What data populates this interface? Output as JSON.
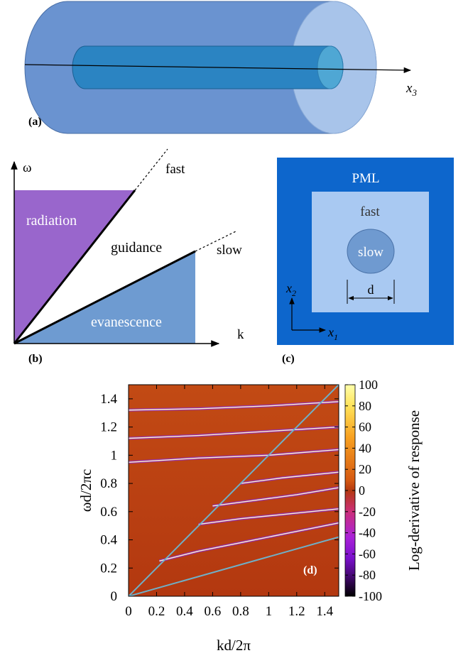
{
  "panel_a": {
    "label": "(a)",
    "axis_label_base": "x",
    "axis_label_sub": "3",
    "colors": {
      "outer": "#6a93d0",
      "outer_cap": "#a8c4ea",
      "inner": "#2b84c2",
      "inner_cap": "#4fa7d4"
    }
  },
  "panel_b": {
    "label": "(b)",
    "y_axis": "ω",
    "x_axis": "k",
    "regions": {
      "radiation": "radiation",
      "guidance": "guidance",
      "evanescence": "evanescence"
    },
    "lines": {
      "fast": "fast",
      "slow": "slow"
    },
    "colors": {
      "radiation": "#9966cc",
      "evanescence": "#6e9bd1"
    }
  },
  "panel_c": {
    "label": "(c)",
    "pml": "PML",
    "fast": "fast",
    "slow": "slow",
    "d": "d",
    "axis1_base": "x",
    "axis1_sub": "1",
    "axis2_base": "x",
    "axis2_sub": "2",
    "colors": {
      "pml": "#0d66cc",
      "fast": "#a9c9f2",
      "slow": "#6f9ad0"
    }
  },
  "chart_data": {
    "type": "heatmap",
    "panel_label": "(d)",
    "xlabel": "kd/2π",
    "ylabel": "ωd/2πc",
    "colorbar_label": "Log-derivative of response",
    "xlim": [
      0,
      1.5
    ],
    "ylim": [
      0,
      1.5
    ],
    "clim": [
      -100,
      100
    ],
    "x_ticks": [
      "0",
      "0.2",
      "0.4",
      "0.6",
      "0.8",
      "1",
      "1.2",
      "1.4"
    ],
    "x_tick_values": [
      0,
      0.2,
      0.4,
      0.6,
      0.8,
      1,
      1.2,
      1.4
    ],
    "y_ticks": [
      "0",
      "0.2",
      "0.4",
      "0.6",
      "0.8",
      "1",
      "1.2",
      "1.4"
    ],
    "y_tick_values": [
      0,
      0.2,
      0.4,
      0.6,
      0.8,
      1,
      1.2,
      1.4
    ],
    "colorbar_ticks": [
      "100",
      "80",
      "60",
      "40",
      "20",
      "0",
      "-20",
      "-40",
      "-60",
      "-80",
      "-100"
    ],
    "colorbar_tick_values": [
      100,
      80,
      60,
      40,
      20,
      0,
      -20,
      -40,
      -60,
      -80,
      -100
    ],
    "light_lines": [
      {
        "x": [
          0,
          1.5
        ],
        "y": [
          0,
          1.5
        ]
      },
      {
        "x": [
          0,
          1.5
        ],
        "y": [
          0,
          0.42
        ]
      }
    ],
    "bands": [
      {
        "x": [
          0.22,
          0.5,
          0.8,
          1.1,
          1.5
        ],
        "y": [
          0.25,
          0.32,
          0.38,
          0.44,
          0.52
        ]
      },
      {
        "x": [
          0.5,
          0.8,
          1.1,
          1.5
        ],
        "y": [
          0.51,
          0.55,
          0.58,
          0.62
        ]
      },
      {
        "x": [
          0.6,
          0.9,
          1.2,
          1.5
        ],
        "y": [
          0.64,
          0.68,
          0.72,
          0.77
        ]
      },
      {
        "x": [
          0.8,
          1.1,
          1.5
        ],
        "y": [
          0.8,
          0.84,
          0.88
        ]
      },
      {
        "x": [
          0,
          0.5,
          1.0,
          1.5
        ],
        "y": [
          0.95,
          0.98,
          1.0,
          1.04
        ]
      },
      {
        "x": [
          0,
          0.5,
          1.0,
          1.5
        ],
        "y": [
          1.12,
          1.14,
          1.17,
          1.2
        ]
      },
      {
        "x": [
          0,
          0.5,
          1.0,
          1.5
        ],
        "y": [
          1.32,
          1.33,
          1.35,
          1.38
        ]
      }
    ]
  }
}
